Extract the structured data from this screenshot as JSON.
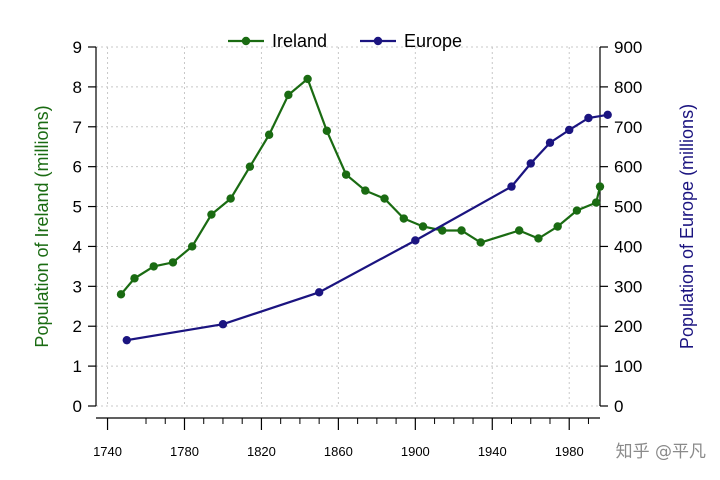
{
  "chart_data": {
    "type": "line",
    "x_ticks": [
      1740,
      1780,
      1820,
      1860,
      1900,
      1940,
      1980
    ],
    "xlim": [
      1734,
      1996
    ],
    "y_left": {
      "label": "Population of Ireland (millions)",
      "ylim": [
        0,
        9
      ],
      "ticks": [
        0,
        1,
        2,
        3,
        4,
        5,
        6,
        7,
        8,
        9
      ],
      "color": "#1a6b12"
    },
    "y_right": {
      "label": "Population of Europe (millions)",
      "ylim": [
        0,
        900
      ],
      "ticks": [
        0,
        100,
        200,
        300,
        400,
        500,
        600,
        700,
        800,
        900
      ],
      "color": "#1b1480"
    },
    "grid": true,
    "legend": {
      "placement": "top-center"
    },
    "series": [
      {
        "name": "Ireland",
        "axis": "left",
        "color": "#1a6b12",
        "x": [
          1747,
          1754,
          1764,
          1774,
          1784,
          1794,
          1804,
          1814,
          1824,
          1834,
          1844,
          1854,
          1864,
          1874,
          1884,
          1894,
          1904,
          1914,
          1924,
          1934,
          1954,
          1964,
          1974,
          1984,
          1994,
          1996
        ],
        "y": [
          2.8,
          3.2,
          3.5,
          3.6,
          4.0,
          4.8,
          5.2,
          6.0,
          6.8,
          7.8,
          8.2,
          6.9,
          5.8,
          5.4,
          5.2,
          4.7,
          4.5,
          4.4,
          4.4,
          4.1,
          4.4,
          4.2,
          4.5,
          4.9,
          5.1,
          5.5
        ]
      },
      {
        "name": "Europe",
        "axis": "right",
        "color": "#1b1480",
        "x": [
          1750,
          1800,
          1850,
          1900,
          1950,
          1960,
          1970,
          1980,
          1990,
          2000
        ],
        "y": [
          165,
          205,
          285,
          415,
          550,
          608,
          660,
          692,
          722,
          730
        ]
      }
    ]
  },
  "watermark": "知乎 @平凡"
}
